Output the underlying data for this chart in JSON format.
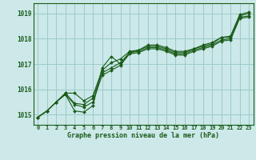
{
  "title": "Graphe pression niveau de la mer (hPa)",
  "background_color": "#cce8e8",
  "grid_color": "#99cccc",
  "line_color": "#1a5c1a",
  "xlim": [
    -0.5,
    23.5
  ],
  "ylim": [
    1014.6,
    1019.4
  ],
  "yticks": [
    1015,
    1016,
    1017,
    1018,
    1019
  ],
  "xticks": [
    0,
    1,
    2,
    3,
    4,
    5,
    6,
    7,
    8,
    9,
    10,
    11,
    12,
    13,
    14,
    15,
    16,
    17,
    18,
    19,
    20,
    21,
    22,
    23
  ],
  "series": [
    [
      1014.9,
      1015.15,
      1015.5,
      1015.85,
      1015.85,
      1015.55,
      1015.75,
      1016.75,
      1017.05,
      1017.2,
      1017.5,
      1017.55,
      1017.75,
      1017.75,
      1017.65,
      1017.5,
      1017.5,
      1017.6,
      1017.7,
      1017.8,
      1018.05,
      1018.05,
      1018.9,
      1019.0
    ],
    [
      1014.9,
      1015.15,
      1015.5,
      1015.85,
      1015.45,
      1015.4,
      1015.65,
      1016.65,
      1016.85,
      1017.05,
      1017.45,
      1017.5,
      1017.65,
      1017.65,
      1017.55,
      1017.4,
      1017.4,
      1017.55,
      1017.65,
      1017.75,
      1017.95,
      1018.0,
      1018.85,
      1018.9
    ],
    [
      1014.9,
      1015.15,
      1015.5,
      1015.8,
      1015.4,
      1015.3,
      1015.5,
      1016.55,
      1016.75,
      1016.95,
      1017.4,
      1017.45,
      1017.6,
      1017.6,
      1017.5,
      1017.35,
      1017.35,
      1017.5,
      1017.6,
      1017.7,
      1017.9,
      1017.95,
      1018.8,
      1018.85
    ],
    [
      1014.9,
      1015.15,
      1015.5,
      1015.8,
      1015.15,
      1015.1,
      1015.35,
      1016.85,
      1017.3,
      1017.0,
      1017.45,
      1017.55,
      1017.7,
      1017.7,
      1017.6,
      1017.45,
      1017.45,
      1017.6,
      1017.75,
      1017.85,
      1018.05,
      1018.1,
      1018.95,
      1019.05
    ]
  ]
}
